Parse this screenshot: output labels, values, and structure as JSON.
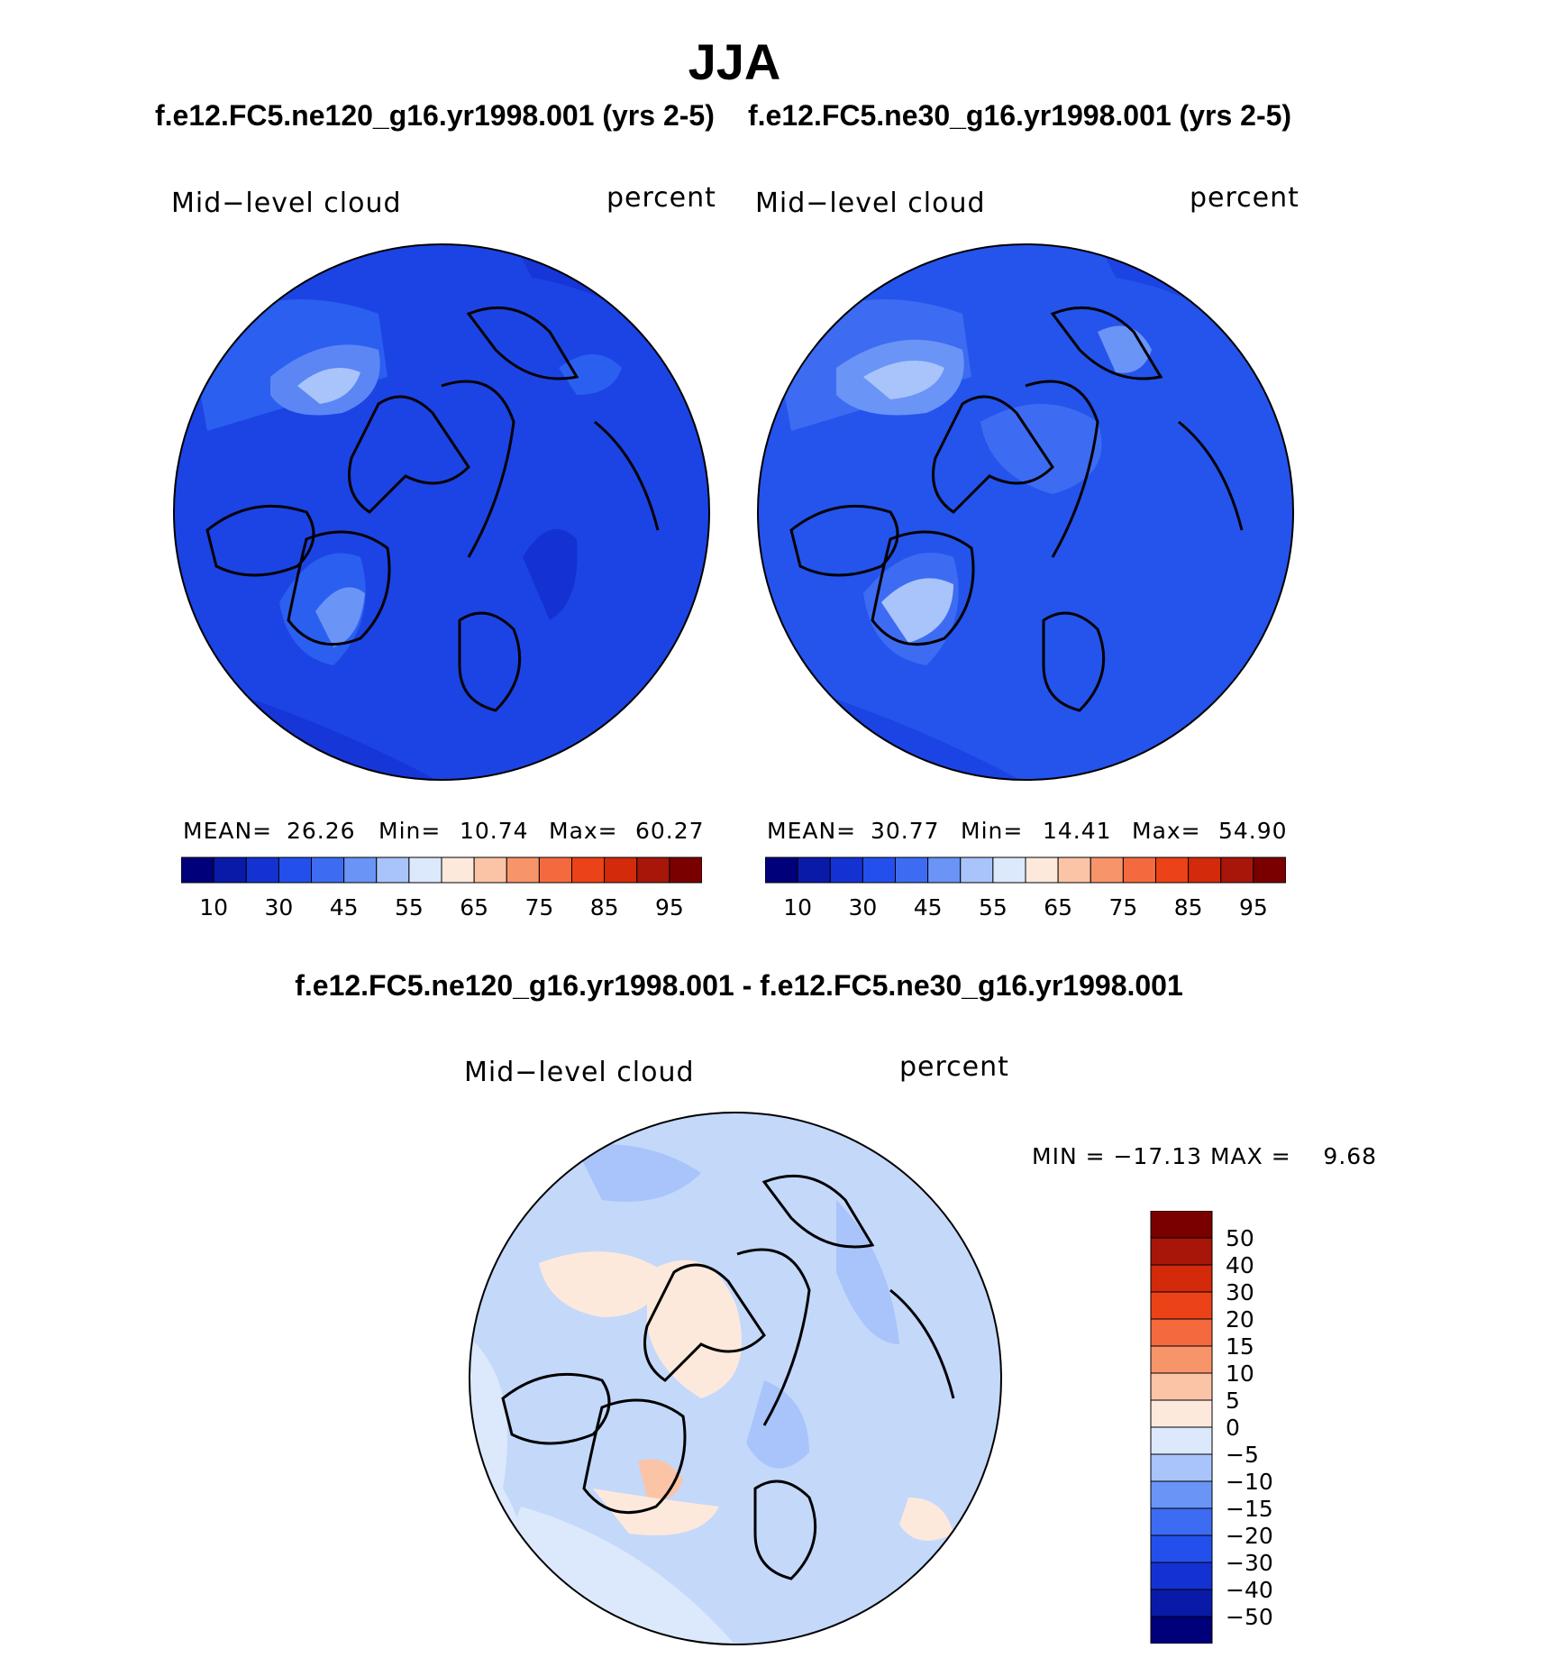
{
  "header": {
    "season": "JJA",
    "case_left": "f.e12.FC5.ne120_g16.yr1998.001 (yrs 2-5)",
    "case_right": "f.e12.FC5.ne30_g16.yr1998.001 (yrs 2-5)",
    "diff_title": "f.e12.FC5.ne120_g16.yr1998.001 - f.e12.FC5.ne30_g16.yr1998.001"
  },
  "panel_left": {
    "variable": "Mid−level cloud",
    "units": "percent",
    "stats": {
      "mean_label": "MEAN=",
      "mean": "26.26",
      "min_label": "Min=",
      "min": "10.74",
      "max_label": "Max=",
      "max": "60.27"
    }
  },
  "panel_right": {
    "variable": "Mid−level cloud",
    "units": "percent",
    "stats": {
      "mean_label": "MEAN=",
      "mean": "30.77",
      "min_label": "Min=",
      "min": "14.41",
      "max_label": "Max=",
      "max": "54.90"
    }
  },
  "panel_diff": {
    "variable": "Mid−level cloud",
    "units": "percent",
    "minmax": "MIN = −17.13 MAX =    9.68"
  },
  "colorbar_main": {
    "ticks": [
      "10",
      "30",
      "45",
      "55",
      "65",
      "75",
      "85",
      "95"
    ],
    "colors": [
      "#00007a",
      "#0a1aa8",
      "#1432d2",
      "#2350ec",
      "#3d6cf2",
      "#6a94f6",
      "#a8c4fa",
      "#dce9fc",
      "#fde9dc",
      "#fbc4a6",
      "#f7946a",
      "#f46a3e",
      "#ec4218",
      "#d22a0a",
      "#a8160a",
      "#7a0000"
    ]
  },
  "colorbar_diff": {
    "ticks": [
      "50",
      "40",
      "30",
      "20",
      "15",
      "10",
      "5",
      "0",
      "−5",
      "−10",
      "−15",
      "−20",
      "−30",
      "−40",
      "−50"
    ],
    "colors": [
      "#7a0000",
      "#a8160a",
      "#d22a0a",
      "#ec4218",
      "#f46a3e",
      "#f7946a",
      "#fbc4a6",
      "#fde9dc",
      "#dce9fc",
      "#a8c4fa",
      "#6a94f6",
      "#3d6cf2",
      "#2350ec",
      "#1432d2",
      "#0a1aa8",
      "#00007a"
    ]
  },
  "map_colors": {
    "left_base": "#1c44e4",
    "right_base": "#2454ec",
    "diff_base": "#c4d8fa"
  }
}
